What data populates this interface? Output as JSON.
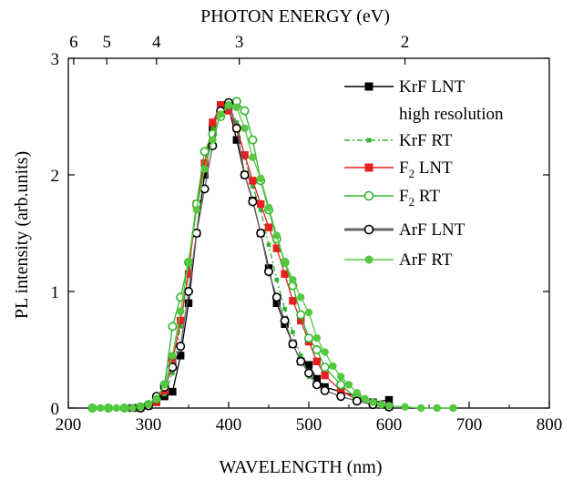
{
  "chart_data": {
    "type": "line",
    "xlabel": "WAVELENGTH (nm)",
    "ylabel": "PL intensity (arb.units)",
    "top_xlabel": "PHOTON ENERGY (eV)",
    "xlim": [
      200,
      800
    ],
    "ylim": [
      0,
      3
    ],
    "x_ticks": [
      "200",
      "300",
      "400",
      "500",
      "600",
      "700",
      "800"
    ],
    "y_ticks": [
      "0",
      "1",
      "2",
      "3"
    ],
    "top_ticks": [
      {
        "label": "6",
        "energy_ev": 6
      },
      {
        "label": "5",
        "energy_ev": 5
      },
      {
        "label": "4",
        "energy_ev": 4
      },
      {
        "label": "3",
        "energy_ev": 3
      },
      {
        "label": "2",
        "energy_ev": 2
      }
    ],
    "legend_position": "top-right",
    "series": [
      {
        "name": "KrF LNT high resolution",
        "legend_lines": [
          "KrF LNT",
          "high resolution"
        ],
        "color": "#000000",
        "marker": "square-filled",
        "dash": "solid",
        "x": [
          280,
          300,
          310,
          320,
          330,
          340,
          350,
          360,
          370,
          380,
          390,
          400,
          410,
          420,
          430,
          440,
          450,
          460,
          470,
          480,
          490,
          500,
          510,
          520,
          540,
          560,
          580,
          600
        ],
        "y": [
          0.0,
          0.02,
          0.05,
          0.1,
          0.14,
          0.45,
          0.9,
          1.5,
          2.0,
          2.4,
          2.6,
          2.58,
          2.3,
          2.0,
          1.78,
          1.5,
          1.2,
          0.9,
          0.72,
          0.55,
          0.4,
          0.37,
          0.25,
          0.18,
          0.14,
          0.1,
          0.05,
          0.07
        ]
      },
      {
        "name": "KrF RT",
        "color": "#2db52d",
        "marker": "small-square",
        "dash": "dash-dot",
        "x": [
          290,
          300,
          310,
          320,
          330,
          340,
          350,
          360,
          370,
          380,
          390,
          400,
          410,
          420,
          430,
          440,
          450,
          460,
          470,
          480,
          490,
          500,
          510,
          520,
          540,
          560,
          580,
          600
        ],
        "y": [
          0.0,
          0.02,
          0.05,
          0.12,
          0.3,
          0.7,
          1.2,
          1.7,
          2.1,
          2.4,
          2.58,
          2.6,
          2.45,
          2.15,
          1.9,
          1.7,
          1.4,
          1.1,
          0.85,
          0.65,
          0.45,
          0.27,
          0.2,
          0.15,
          0.1,
          0.06,
          0.03,
          0.01
        ]
      },
      {
        "name": "F2 LNT",
        "legend_label": "F",
        "legend_sub": "2",
        "legend_rest": " LNT",
        "color": "#e62020",
        "marker": "square-filled",
        "dash": "solid",
        "x": [
          290,
          300,
          310,
          320,
          330,
          340,
          350,
          360,
          370,
          380,
          390,
          400,
          410,
          420,
          430,
          440,
          450,
          460,
          470,
          480,
          490,
          500,
          510,
          520,
          540,
          560,
          580,
          600
        ],
        "y": [
          0.0,
          0.02,
          0.05,
          0.15,
          0.4,
          0.75,
          1.15,
          1.75,
          2.1,
          2.45,
          2.6,
          2.55,
          2.4,
          2.17,
          1.95,
          1.75,
          1.55,
          1.37,
          1.15,
          0.92,
          0.75,
          0.57,
          0.4,
          0.28,
          0.15,
          0.07,
          0.03,
          0.01
        ]
      },
      {
        "name": "F2 RT",
        "legend_label": "F",
        "legend_sub": "2",
        "legend_rest": " RT",
        "color": "#2db52d",
        "marker": "circle-open",
        "dash": "solid",
        "x": [
          230,
          250,
          270,
          290,
          300,
          310,
          320,
          330,
          340,
          350,
          360,
          370,
          380,
          390,
          400,
          410,
          420,
          430,
          440,
          450,
          460,
          470,
          480,
          490,
          500,
          510,
          520,
          540,
          560,
          580,
          600
        ],
        "y": [
          0.0,
          0.0,
          0.0,
          0.01,
          0.03,
          0.08,
          0.2,
          0.7,
          0.95,
          1.25,
          1.75,
          2.2,
          2.35,
          2.5,
          2.6,
          2.63,
          2.55,
          2.3,
          1.95,
          1.7,
          1.45,
          1.25,
          1.05,
          0.8,
          0.6,
          0.5,
          0.35,
          0.2,
          0.08,
          0.03,
          0.01
        ]
      },
      {
        "name": "ArF LNT",
        "color": "#000000",
        "line_color": "#666666",
        "marker": "circle-open",
        "dash": "solid",
        "x": [
          290,
          300,
          310,
          320,
          330,
          340,
          350,
          360,
          370,
          380,
          390,
          400,
          410,
          420,
          430,
          440,
          450,
          460,
          470,
          480,
          490,
          500,
          510,
          520,
          540,
          560,
          580,
          600
        ],
        "y": [
          0.0,
          0.02,
          0.1,
          0.18,
          0.35,
          0.53,
          1.0,
          1.5,
          1.88,
          2.25,
          2.55,
          2.62,
          2.4,
          2.0,
          1.77,
          1.5,
          1.17,
          0.95,
          0.75,
          0.55,
          0.4,
          0.3,
          0.2,
          0.15,
          0.1,
          0.06,
          0.03,
          0.01
        ]
      },
      {
        "name": "ArF RT",
        "color": "#55c840",
        "marker": "circle-filled",
        "dash": "solid",
        "x": [
          230,
          240,
          250,
          260,
          270,
          280,
          290,
          300,
          310,
          320,
          330,
          340,
          350,
          360,
          370,
          380,
          390,
          400,
          410,
          420,
          430,
          440,
          450,
          460,
          470,
          480,
          490,
          500,
          510,
          520,
          530,
          540,
          550,
          560,
          570,
          580,
          590,
          600,
          620,
          640,
          660,
          680
        ],
        "y": [
          0.0,
          0.0,
          0.0,
          0.0,
          0.0,
          0.0,
          0.01,
          0.03,
          0.08,
          0.2,
          0.45,
          0.83,
          1.25,
          1.7,
          2.05,
          2.3,
          2.52,
          2.6,
          2.58,
          2.4,
          2.15,
          1.97,
          1.72,
          1.48,
          1.25,
          1.1,
          0.95,
          0.82,
          0.6,
          0.48,
          0.36,
          0.27,
          0.2,
          0.13,
          0.08,
          0.05,
          0.03,
          0.02,
          0.01,
          0.0,
          0.0,
          0.0
        ]
      }
    ]
  }
}
